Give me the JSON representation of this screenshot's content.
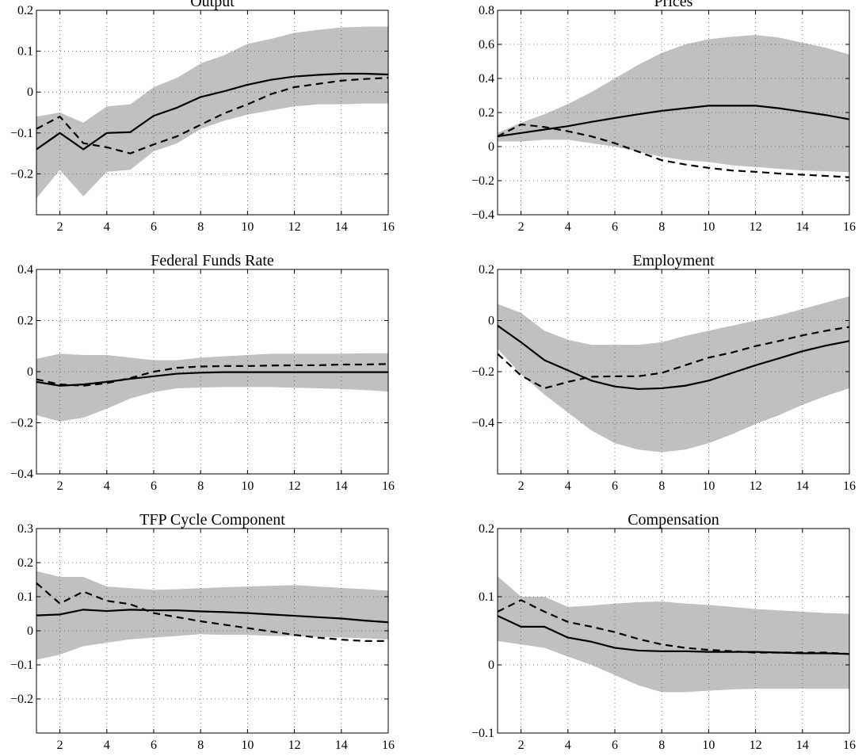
{
  "figure": {
    "colors": {
      "band": "#c0c0c0",
      "line": "#000000",
      "grid": "#555555"
    }
  },
  "chart_data": [
    {
      "type": "line",
      "title": "Output",
      "xlim": [
        1,
        16
      ],
      "ylim": [
        -0.3,
        0.2
      ],
      "xticks": [
        2,
        4,
        6,
        8,
        10,
        12,
        14,
        16
      ],
      "yticks": [
        -0.2,
        -0.1,
        0,
        0.1,
        0.2
      ],
      "ytick_labels": [
        "−0.2",
        "−0.1",
        "0",
        "0.1",
        "0.2"
      ],
      "x": [
        1,
        2,
        3,
        4,
        5,
        6,
        7,
        8,
        9,
        10,
        11,
        12,
        13,
        14,
        15,
        16
      ],
      "series": [
        {
          "style": "solid",
          "values": [
            -0.14,
            -0.1,
            -0.14,
            -0.1,
            -0.098,
            -0.058,
            -0.038,
            -0.012,
            0.002,
            0.018,
            0.03,
            0.038,
            0.042,
            0.045,
            0.045,
            0.043
          ]
        },
        {
          "style": "dashed",
          "values": [
            -0.09,
            -0.06,
            -0.125,
            -0.135,
            -0.15,
            -0.128,
            -0.108,
            -0.08,
            -0.052,
            -0.03,
            -0.005,
            0.012,
            0.02,
            0.028,
            0.032,
            0.035
          ]
        }
      ],
      "band": {
        "upper": [
          -0.06,
          -0.05,
          -0.075,
          -0.035,
          -0.03,
          0.012,
          0.035,
          0.07,
          0.09,
          0.118,
          0.13,
          0.145,
          0.152,
          0.158,
          0.16,
          0.16
        ],
        "lower": [
          -0.26,
          -0.19,
          -0.255,
          -0.195,
          -0.19,
          -0.145,
          -0.125,
          -0.09,
          -0.07,
          -0.055,
          -0.045,
          -0.035,
          -0.03,
          -0.03,
          -0.028,
          -0.028
        ]
      }
    },
    {
      "type": "line",
      "title": "Prices",
      "xlim": [
        1,
        16
      ],
      "ylim": [
        -0.4,
        0.8
      ],
      "xticks": [
        2,
        4,
        6,
        8,
        10,
        12,
        14,
        16
      ],
      "yticks": [
        -0.4,
        -0.2,
        0,
        0.2,
        0.4,
        0.6,
        0.8
      ],
      "ytick_labels": [
        "−0.4",
        "−0.2",
        "0",
        "0.2",
        "0.4",
        "0.6",
        "0.8"
      ],
      "x": [
        1,
        2,
        3,
        4,
        5,
        6,
        7,
        8,
        9,
        10,
        11,
        12,
        13,
        14,
        15,
        16
      ],
      "series": [
        {
          "style": "solid",
          "values": [
            0.06,
            0.08,
            0.1,
            0.12,
            0.145,
            0.168,
            0.19,
            0.21,
            0.225,
            0.24,
            0.24,
            0.24,
            0.225,
            0.205,
            0.185,
            0.16
          ]
        },
        {
          "style": "dashed",
          "values": [
            0.06,
            0.13,
            0.115,
            0.09,
            0.06,
            0.02,
            -0.03,
            -0.08,
            -0.105,
            -0.125,
            -0.14,
            -0.148,
            -0.158,
            -0.165,
            -0.172,
            -0.18
          ]
        }
      ],
      "band": {
        "upper": [
          0.08,
          0.14,
          0.19,
          0.25,
          0.32,
          0.4,
          0.48,
          0.55,
          0.6,
          0.63,
          0.645,
          0.655,
          0.64,
          0.61,
          0.58,
          0.54
        ],
        "lower": [
          0.03,
          0.03,
          0.04,
          0.04,
          0.02,
          0.0,
          -0.03,
          -0.06,
          -0.08,
          -0.09,
          -0.11,
          -0.12,
          -0.13,
          -0.14,
          -0.145,
          -0.15
        ]
      }
    },
    {
      "type": "line",
      "title": "Federal Funds Rate",
      "xlim": [
        1,
        16
      ],
      "ylim": [
        -0.4,
        0.4
      ],
      "xticks": [
        2,
        4,
        6,
        8,
        10,
        12,
        14,
        16
      ],
      "yticks": [
        -0.4,
        -0.2,
        0,
        0.2,
        0.4
      ],
      "ytick_labels": [
        "−0.4",
        "−0.2",
        "0",
        "0.2",
        "0.4"
      ],
      "x": [
        1,
        2,
        3,
        4,
        5,
        6,
        7,
        8,
        9,
        10,
        11,
        12,
        13,
        14,
        15,
        16
      ],
      "series": [
        {
          "style": "solid",
          "values": [
            -0.04,
            -0.055,
            -0.05,
            -0.04,
            -0.028,
            -0.018,
            -0.008,
            -0.004,
            -0.002,
            -0.002,
            -0.002,
            -0.002,
            -0.002,
            -0.002,
            -0.002,
            -0.002
          ]
        },
        {
          "style": "dashed",
          "values": [
            -0.03,
            -0.05,
            -0.055,
            -0.045,
            -0.025,
            0.0,
            0.015,
            0.02,
            0.022,
            0.022,
            0.024,
            0.025,
            0.025,
            0.028,
            0.028,
            0.03
          ]
        }
      ],
      "band": {
        "upper": [
          0.05,
          0.07,
          0.065,
          0.065,
          0.055,
          0.045,
          0.045,
          0.055,
          0.06,
          0.065,
          0.07,
          0.07,
          0.07,
          0.07,
          0.072,
          0.072
        ],
        "lower": [
          -0.17,
          -0.195,
          -0.18,
          -0.145,
          -0.105,
          -0.08,
          -0.065,
          -0.062,
          -0.06,
          -0.06,
          -0.06,
          -0.063,
          -0.065,
          -0.068,
          -0.072,
          -0.078
        ]
      }
    },
    {
      "type": "line",
      "title": "Employment",
      "xlim": [
        1,
        16
      ],
      "ylim": [
        -0.6,
        0.2
      ],
      "xticks": [
        2,
        4,
        6,
        8,
        10,
        12,
        14,
        16
      ],
      "yticks": [
        -0.4,
        -0.2,
        0,
        0.2
      ],
      "ytick_labels": [
        "−0.4",
        "−0.2",
        "0",
        "0.2"
      ],
      "x": [
        1,
        2,
        3,
        4,
        5,
        6,
        7,
        8,
        9,
        10,
        11,
        12,
        13,
        14,
        15,
        16
      ],
      "series": [
        {
          "style": "solid",
          "values": [
            -0.02,
            -0.085,
            -0.155,
            -0.195,
            -0.235,
            -0.258,
            -0.268,
            -0.265,
            -0.255,
            -0.235,
            -0.205,
            -0.175,
            -0.148,
            -0.12,
            -0.098,
            -0.08
          ]
        },
        {
          "style": "dashed",
          "values": [
            -0.13,
            -0.215,
            -0.265,
            -0.24,
            -0.22,
            -0.218,
            -0.218,
            -0.205,
            -0.175,
            -0.145,
            -0.125,
            -0.1,
            -0.08,
            -0.058,
            -0.04,
            -0.025
          ]
        }
      ],
      "band": {
        "upper": [
          0.065,
          0.03,
          -0.04,
          -0.075,
          -0.095,
          -0.095,
          -0.095,
          -0.085,
          -0.06,
          -0.04,
          -0.02,
          0.0,
          0.02,
          0.045,
          0.07,
          0.095
        ],
        "lower": [
          -0.11,
          -0.21,
          -0.29,
          -0.36,
          -0.43,
          -0.48,
          -0.505,
          -0.515,
          -0.505,
          -0.48,
          -0.445,
          -0.405,
          -0.37,
          -0.33,
          -0.295,
          -0.265
        ]
      }
    },
    {
      "type": "line",
      "title": "TFP Cycle Component",
      "xlim": [
        1,
        16
      ],
      "ylim": [
        -0.3,
        0.3
      ],
      "xticks": [
        2,
        4,
        6,
        8,
        10,
        12,
        14,
        16
      ],
      "yticks": [
        -0.2,
        -0.1,
        0,
        0.1,
        0.2,
        0.3
      ],
      "ytick_labels": [
        "−0.2",
        "−0.1",
        "0",
        "0.1",
        "0.2",
        "0.3"
      ],
      "x": [
        1,
        2,
        3,
        4,
        5,
        6,
        7,
        8,
        9,
        10,
        11,
        12,
        13,
        14,
        15,
        16
      ],
      "series": [
        {
          "style": "solid",
          "values": [
            0.045,
            0.048,
            0.062,
            0.058,
            0.062,
            0.06,
            0.06,
            0.057,
            0.055,
            0.052,
            0.048,
            0.044,
            0.04,
            0.036,
            0.03,
            0.025
          ]
        },
        {
          "style": "dashed",
          "values": [
            0.14,
            0.08,
            0.115,
            0.088,
            0.078,
            0.052,
            0.04,
            0.028,
            0.018,
            0.008,
            -0.002,
            -0.012,
            -0.02,
            -0.026,
            -0.03,
            -0.03
          ]
        }
      ],
      "band": {
        "upper": [
          0.175,
          0.158,
          0.158,
          0.13,
          0.125,
          0.12,
          0.122,
          0.125,
          0.128,
          0.13,
          0.132,
          0.134,
          0.13,
          0.126,
          0.122,
          0.118
        ],
        "lower": [
          -0.085,
          -0.07,
          -0.045,
          -0.035,
          -0.025,
          -0.02,
          -0.015,
          -0.01,
          -0.012,
          -0.012,
          -0.015,
          -0.015,
          -0.018,
          -0.02,
          -0.022,
          -0.025
        ]
      }
    },
    {
      "type": "line",
      "title": "Compensation",
      "xlim": [
        1,
        16
      ],
      "ylim": [
        -0.1,
        0.2
      ],
      "xticks": [
        2,
        4,
        6,
        8,
        10,
        12,
        14,
        16
      ],
      "yticks": [
        -0.1,
        0,
        0.1,
        0.2
      ],
      "ytick_labels": [
        "−0.1",
        "0",
        "0.1",
        "0.2"
      ],
      "x": [
        1,
        2,
        3,
        4,
        5,
        6,
        7,
        8,
        9,
        10,
        11,
        12,
        13,
        14,
        15,
        16
      ],
      "series": [
        {
          "style": "solid",
          "values": [
            0.072,
            0.056,
            0.056,
            0.04,
            0.034,
            0.025,
            0.021,
            0.02,
            0.02,
            0.019,
            0.019,
            0.019,
            0.018,
            0.017,
            0.017,
            0.016
          ]
        },
        {
          "style": "dashed",
          "values": [
            0.078,
            0.095,
            0.078,
            0.063,
            0.056,
            0.048,
            0.038,
            0.03,
            0.025,
            0.022,
            0.02,
            0.018,
            0.018,
            0.018,
            0.018,
            0.016
          ]
        }
      ],
      "band": {
        "upper": [
          0.13,
          0.1,
          0.1,
          0.085,
          0.087,
          0.09,
          0.092,
          0.093,
          0.09,
          0.088,
          0.085,
          0.082,
          0.08,
          0.078,
          0.076,
          0.075
        ],
        "lower": [
          0.035,
          0.03,
          0.025,
          0.012,
          0.0,
          -0.015,
          -0.03,
          -0.04,
          -0.04,
          -0.038,
          -0.036,
          -0.035,
          -0.035,
          -0.035,
          -0.035,
          -0.035
        ]
      }
    }
  ]
}
